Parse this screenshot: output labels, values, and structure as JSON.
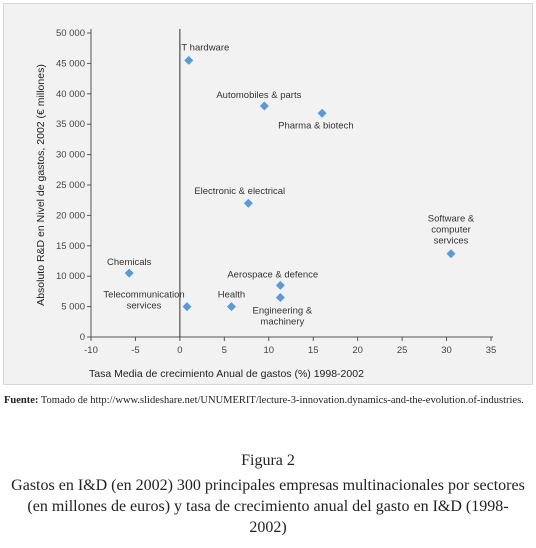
{
  "chart_data": {
    "type": "scatter",
    "title": "",
    "xlabel": "Tasa Media de crecimiento Anual de gastos (%) 1998-2002",
    "ylabel": "Absoluto R&D en Nivel de gastos, 2002 (€ millones)",
    "xlim": [
      -10,
      35
    ],
    "ylim": [
      0,
      50000
    ],
    "x_ticks": [
      -10,
      -5,
      0,
      5,
      10,
      15,
      20,
      25,
      30,
      35
    ],
    "x_tick_labels": [
      "-10",
      "-5",
      "0",
      "5",
      "10",
      "15",
      "20",
      "25",
      "30",
      "35"
    ],
    "y_ticks": [
      0,
      5000,
      10000,
      15000,
      20000,
      25000,
      30000,
      35000,
      40000,
      45000,
      50000
    ],
    "y_tick_labels": [
      "0",
      "5 000",
      "10 000",
      "15 000",
      "20 000",
      "25 000",
      "30 000",
      "35 000",
      "40 000",
      "45 000",
      "50 000"
    ],
    "grid": false,
    "marker_color": "#5b9bd5",
    "points": [
      {
        "label": "IT hardware",
        "x": 1,
        "y": 45500
      },
      {
        "label": "Automobiles & parts",
        "x": 9.5,
        "y": 38000
      },
      {
        "label": "Pharma & biotech",
        "x": 16,
        "y": 36800
      },
      {
        "label": "Electronic & electrical",
        "x": 7.7,
        "y": 22000
      },
      {
        "label": "Software & computer services",
        "x": 30.5,
        "y": 13700
      },
      {
        "label": "Chemicals",
        "x": -5.7,
        "y": 10500
      },
      {
        "label": "Aerospace & defence",
        "x": 11.3,
        "y": 8500
      },
      {
        "label": "Health",
        "x": 5.8,
        "y": 5000
      },
      {
        "label": "Telecommunication services",
        "x": 0.8,
        "y": 5000
      },
      {
        "label": "Engineering & machinery",
        "x": 11.3,
        "y": 6500
      }
    ]
  },
  "source": {
    "label": "Fuente:",
    "text": "Tomado de http://www.slideshare.net/UNUMERIT/lecture-3-innovation.dynamics-and-the-evolution.of-industries."
  },
  "figure": {
    "number": "Figura 2",
    "caption": "Gastos en I&D (en 2002) 300 principales empresas multinacionales por sectores (en millones de euros) y tasa de crecimiento anual del gasto en I&D (1998-2002)"
  }
}
